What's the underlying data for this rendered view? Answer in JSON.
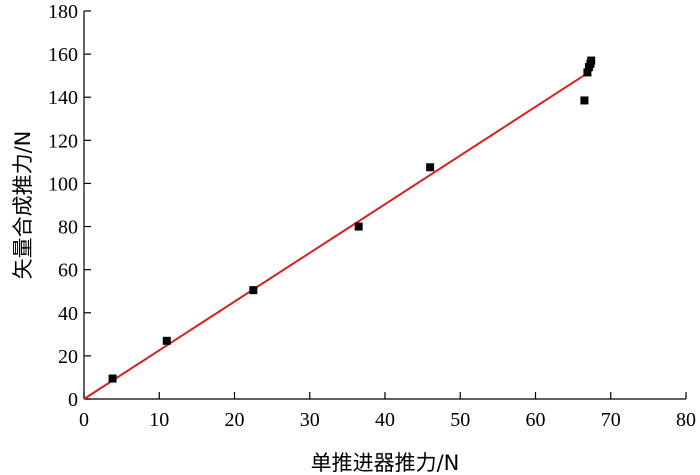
{
  "chart_data": {
    "type": "scatter",
    "title": "",
    "xlabel": "单推进器推力/N",
    "ylabel": "矢量合成推力/N",
    "xlim": [
      0,
      80
    ],
    "ylim": [
      0,
      180
    ],
    "x_ticks": [
      "0",
      "10",
      "20",
      "30",
      "40",
      "50",
      "60",
      "70",
      "80"
    ],
    "y_ticks": [
      "0",
      "20",
      "40",
      "60",
      "80",
      "100",
      "120",
      "140",
      "160",
      "180"
    ],
    "grid": false,
    "marker_color": "#000000",
    "line_color": "#d62020",
    "series": [
      {
        "points": [
          {
            "x": 3.8,
            "y": 9.5
          },
          {
            "x": 11.0,
            "y": 27.0
          },
          {
            "x": 22.5,
            "y": 50.5
          },
          {
            "x": 36.5,
            "y": 80.0
          },
          {
            "x": 46.0,
            "y": 107.5
          },
          {
            "x": 66.5,
            "y": 138.5
          },
          {
            "x": 66.9,
            "y": 151.5
          },
          {
            "x": 67.1,
            "y": 154.0
          },
          {
            "x": 67.3,
            "y": 155.5
          },
          {
            "x": 67.4,
            "y": 157.0
          }
        ]
      }
    ],
    "fit_line": {
      "x": [
        0,
        67.5
      ],
      "y": [
        0,
        152.5
      ]
    }
  }
}
